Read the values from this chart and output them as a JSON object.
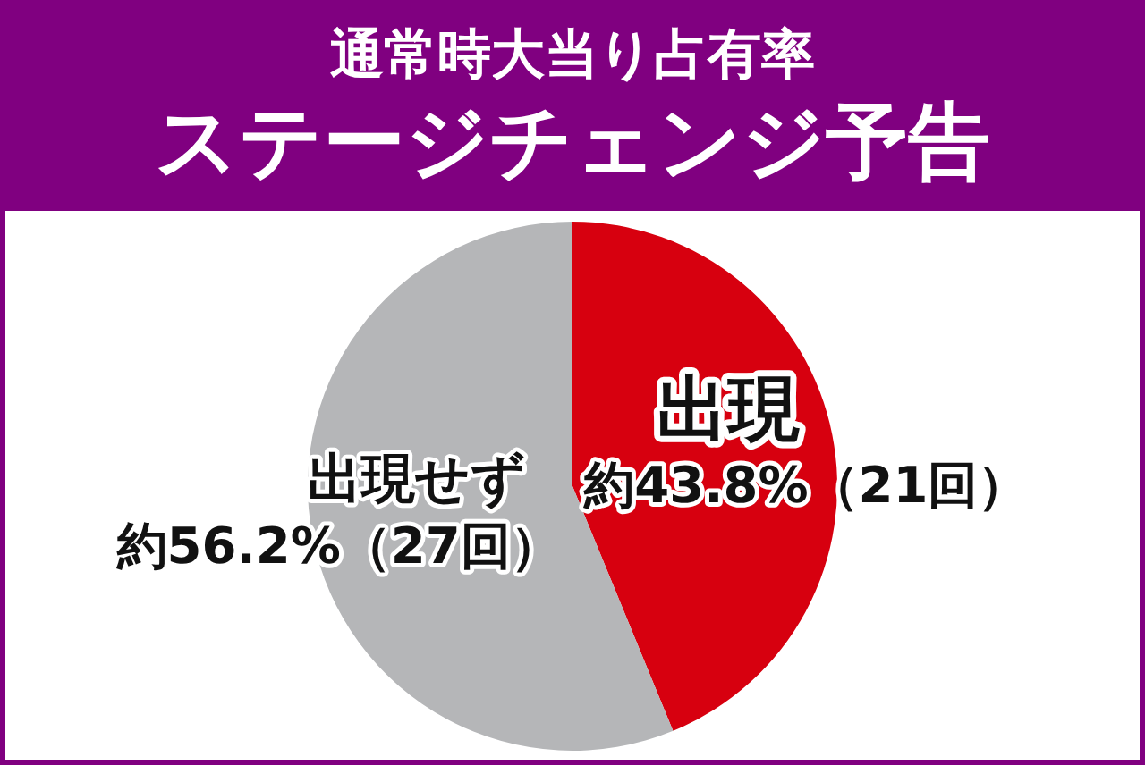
{
  "chart_data": {
    "type": "pie",
    "title": "通常時大当り占有率",
    "subtitle": "ステージチェンジ予告",
    "categories": [
      "出現",
      "出現せず"
    ],
    "values": [
      43.8,
      56.2
    ],
    "colors": [
      "#d7000f",
      "#b5b6b8"
    ],
    "value_labels": [
      "約43.8%（21回）",
      "約56.2%（27回）"
    ]
  }
}
